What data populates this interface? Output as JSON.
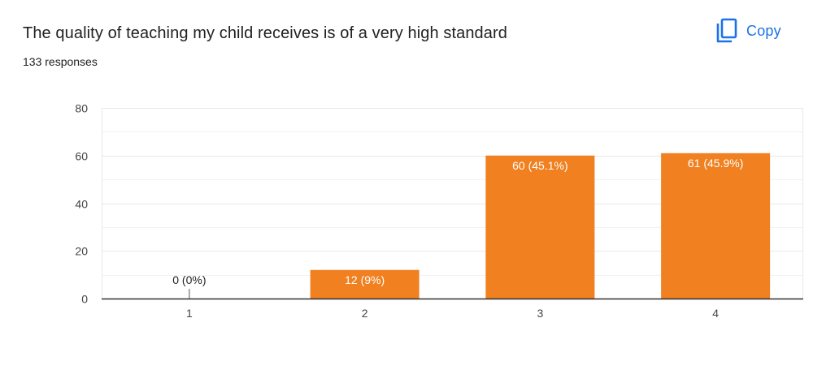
{
  "header": {
    "title": "The quality of teaching my child receives is of a very high standard",
    "subtitle": "133 responses",
    "copy_label": "Copy",
    "copy_icon": "copy-icon"
  },
  "colors": {
    "bar": "#f08020",
    "accent": "#1a73e8",
    "grid": "#e8e8e8",
    "axis": "#333333"
  },
  "chart_data": {
    "type": "bar",
    "categories": [
      "1",
      "2",
      "3",
      "4"
    ],
    "values": [
      0,
      12,
      60,
      61
    ],
    "data_labels": [
      "0 (0%)",
      "12 (9%)",
      "60 (45.1%)",
      "61 (45.9%)"
    ],
    "ylim": [
      0,
      80
    ],
    "yticks": [
      0,
      20,
      40,
      60,
      80
    ],
    "xlabel": "",
    "ylabel": "",
    "grid": true
  }
}
